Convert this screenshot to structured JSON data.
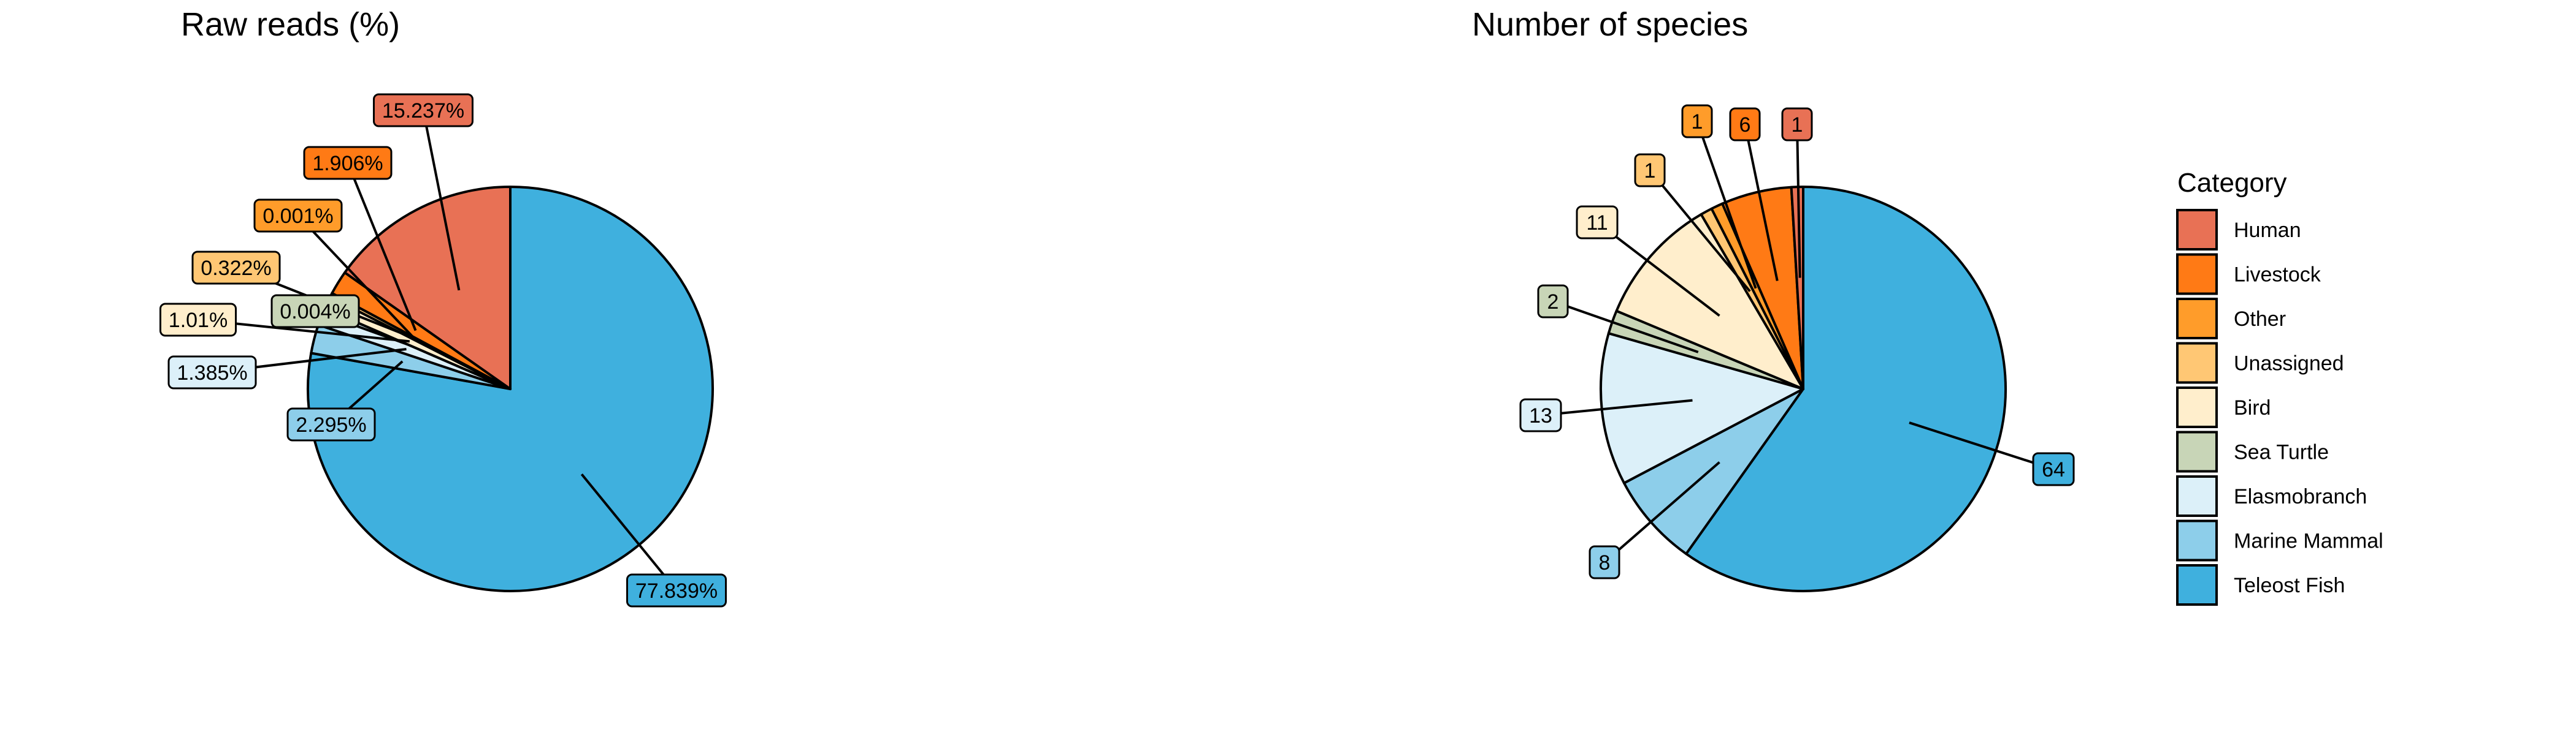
{
  "chart_data": [
    {
      "type": "pie",
      "title": "Raw reads (%)",
      "categories": [
        "Human",
        "Livestock",
        "Other",
        "Unassigned",
        "Bird",
        "Sea Turtle",
        "Elasmobranch",
        "Marine Mammal",
        "Teleost Fish"
      ],
      "values": [
        15.237,
        1.906,
        0.001,
        0.322,
        1.01,
        0.004,
        1.385,
        2.295,
        77.839
      ],
      "labels": [
        "15.237%",
        "1.906%",
        "0.001%",
        "0.322%",
        "1.01%",
        "0.004%",
        "1.385%",
        "2.295%",
        "77.839%"
      ]
    },
    {
      "type": "pie",
      "title": "Number of species",
      "categories": [
        "Human",
        "Livestock",
        "Other",
        "Unassigned",
        "Bird",
        "Sea Turtle",
        "Elasmobranch",
        "Marine Mammal",
        "Teleost Fish"
      ],
      "values": [
        1,
        6,
        1,
        1,
        11,
        2,
        13,
        8,
        64
      ],
      "labels": [
        "1",
        "6",
        "1",
        "1",
        "11",
        "2",
        "13",
        "8",
        "64"
      ]
    }
  ],
  "legend": {
    "title": "Category",
    "position": "right",
    "items": [
      {
        "label": "Human",
        "color": "#E87155"
      },
      {
        "label": "Livestock",
        "color": "#FF7A15"
      },
      {
        "label": "Other",
        "color": "#FF9C2A"
      },
      {
        "label": "Unassigned",
        "color": "#FFC774"
      },
      {
        "label": "Bird",
        "color": "#FFEECC"
      },
      {
        "label": "Sea Turtle",
        "color": "#C8D5B7"
      },
      {
        "label": "Elasmobranch",
        "color": "#DCF0F9"
      },
      {
        "label": "Marine Mammal",
        "color": "#8DCEEA"
      },
      {
        "label": "Teleost Fish",
        "color": "#3FB0DE"
      }
    ]
  }
}
